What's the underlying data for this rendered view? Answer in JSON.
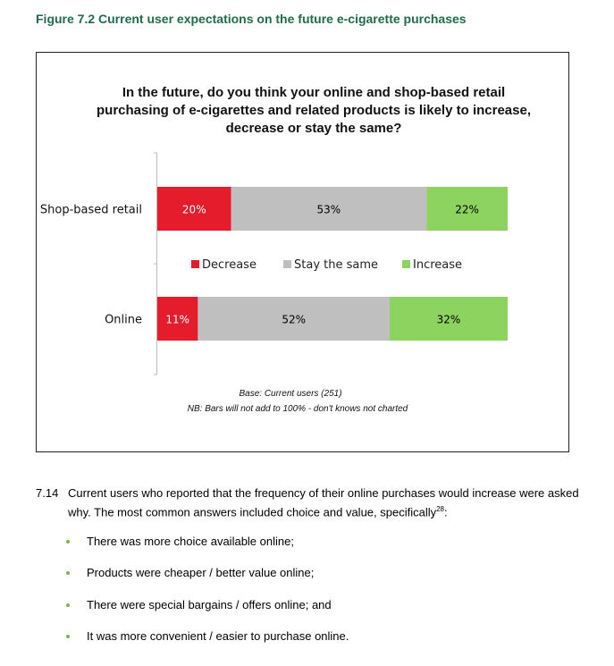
{
  "figure_title": "Figure 7.2 Current user expectations on the future e-cigarette purchases",
  "chart_data": {
    "type": "bar",
    "orientation": "horizontal",
    "stacked": true,
    "title_lines": [
      "In the future, do you think your online and shop-based retail",
      "purchasing of e-cigarettes and related products is likely to increase,",
      "decrease or stay the same?"
    ],
    "categories": [
      "Shop-based retail",
      "Online"
    ],
    "series": [
      {
        "name": "Decrease",
        "values": [
          20,
          11
        ],
        "color": "#e41c2b",
        "label_color": "#ffffff"
      },
      {
        "name": "Stay the same",
        "values": [
          53,
          52
        ],
        "color": "#bfbfbf",
        "label_color": "#000000"
      },
      {
        "name": "Increase",
        "values": [
          22,
          32
        ],
        "color": "#8dd35f",
        "label_color": "#000000"
      }
    ],
    "value_labels": [
      [
        "20%",
        "53%",
        "22%"
      ],
      [
        "11%",
        "52%",
        "32%"
      ]
    ],
    "xlim": [
      0,
      95
    ],
    "legend_position": "center, between bars",
    "notes": [
      "Base: Current users (251)",
      "NB: Bars will not add to 100% - don't knows not charted"
    ]
  },
  "paragraph": {
    "number": "7.14",
    "line1": "Current users who reported that the frequency of their online purchases would increase were asked",
    "line2": "why. The most common answers included choice and value, specifically",
    "footnote": "28",
    "line2_end": ":"
  },
  "bullets": [
    "There was more choice available online;",
    "Products were cheaper / better value online;",
    "There were special bargains / offers online; and",
    "It was more convenient / easier to purchase online."
  ]
}
